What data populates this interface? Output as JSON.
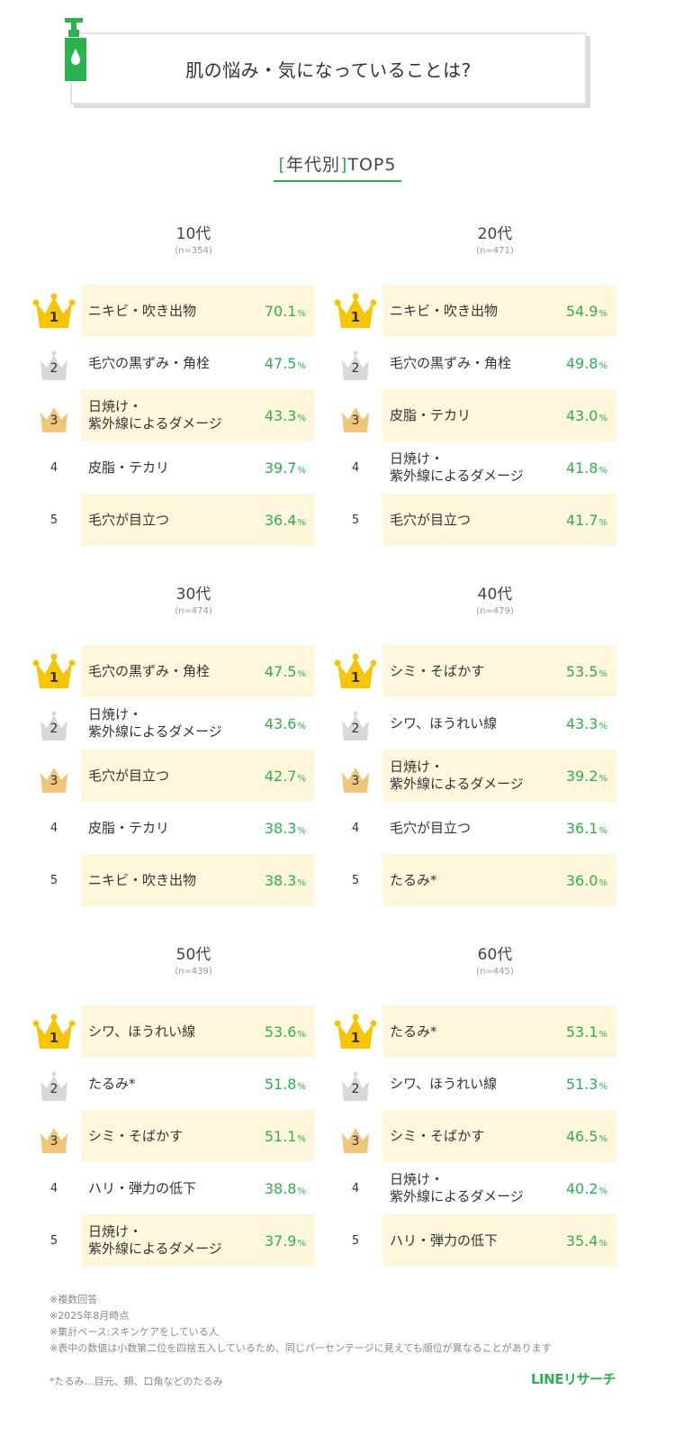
{
  "header": {
    "title": "肌の悩み・気になっていることは?",
    "icon": "pump-bottle-icon"
  },
  "subtitle": {
    "bracket_open": "[",
    "text": "年代別",
    "bracket_close": "]",
    "suffix": "TOP5"
  },
  "colors": {
    "accent": "#2bb24c",
    "highlight": "#fff7dc",
    "gold": "#f7c600",
    "silver": "#d8d8dc",
    "bronze": "#f0c57a"
  },
  "panels": [
    {
      "age": "10代",
      "n": "(n=354)",
      "rows": [
        {
          "rank": "1",
          "label": "ニキビ・吹き出物",
          "value": "70.1",
          "unit": "%"
        },
        {
          "rank": "2",
          "label": "毛穴の黒ずみ・角栓",
          "value": "47.5",
          "unit": "%"
        },
        {
          "rank": "3",
          "label": "日焼け・\n紫外線によるダメージ",
          "value": "43.3",
          "unit": "%"
        },
        {
          "rank": "4",
          "label": "皮脂・テカリ",
          "value": "39.7",
          "unit": "%"
        },
        {
          "rank": "5",
          "label": "毛穴が目立つ",
          "value": "36.4",
          "unit": "%"
        }
      ]
    },
    {
      "age": "20代",
      "n": "(n=471)",
      "rows": [
        {
          "rank": "1",
          "label": "ニキビ・吹き出物",
          "value": "54.9",
          "unit": "%"
        },
        {
          "rank": "2",
          "label": "毛穴の黒ずみ・角栓",
          "value": "49.8",
          "unit": "%"
        },
        {
          "rank": "3",
          "label": "皮脂・テカリ",
          "value": "43.0",
          "unit": "%"
        },
        {
          "rank": "4",
          "label": "日焼け・\n紫外線によるダメージ",
          "value": "41.8",
          "unit": "%"
        },
        {
          "rank": "5",
          "label": "毛穴が目立つ",
          "value": "41.7",
          "unit": "%"
        }
      ]
    },
    {
      "age": "30代",
      "n": "(n=474)",
      "rows": [
        {
          "rank": "1",
          "label": "毛穴の黒ずみ・角栓",
          "value": "47.5",
          "unit": "%"
        },
        {
          "rank": "2",
          "label": "日焼け・\n紫外線によるダメージ",
          "value": "43.6",
          "unit": "%"
        },
        {
          "rank": "3",
          "label": "毛穴が目立つ",
          "value": "42.7",
          "unit": "%"
        },
        {
          "rank": "4",
          "label": "皮脂・テカリ",
          "value": "38.3",
          "unit": "%"
        },
        {
          "rank": "5",
          "label": "ニキビ・吹き出物",
          "value": "38.3",
          "unit": "%"
        }
      ]
    },
    {
      "age": "40代",
      "n": "(n=479)",
      "rows": [
        {
          "rank": "1",
          "label": "シミ・そばかす",
          "value": "53.5",
          "unit": "%"
        },
        {
          "rank": "2",
          "label": "シワ、ほうれい線",
          "value": "43.3",
          "unit": "%"
        },
        {
          "rank": "3",
          "label": "日焼け・\n紫外線によるダメージ",
          "value": "39.2",
          "unit": "%"
        },
        {
          "rank": "4",
          "label": "毛穴が目立つ",
          "value": "36.1",
          "unit": "%"
        },
        {
          "rank": "5",
          "label": "たるみ*",
          "value": "36.0",
          "unit": "%"
        }
      ]
    },
    {
      "age": "50代",
      "n": "(n=439)",
      "rows": [
        {
          "rank": "1",
          "label": "シワ、ほうれい線",
          "value": "53.6",
          "unit": "%"
        },
        {
          "rank": "2",
          "label": "たるみ*",
          "value": "51.8",
          "unit": "%"
        },
        {
          "rank": "3",
          "label": "シミ・そばかす",
          "value": "51.1",
          "unit": "%"
        },
        {
          "rank": "4",
          "label": "ハリ・弾力の低下",
          "value": "38.8",
          "unit": "%"
        },
        {
          "rank": "5",
          "label": "日焼け・\n紫外線によるダメージ",
          "value": "37.9",
          "unit": "%"
        }
      ]
    },
    {
      "age": "60代",
      "n": "(n=445)",
      "rows": [
        {
          "rank": "1",
          "label": "たるみ*",
          "value": "53.1",
          "unit": "%"
        },
        {
          "rank": "2",
          "label": "シワ、ほうれい線",
          "value": "51.3",
          "unit": "%"
        },
        {
          "rank": "3",
          "label": "シミ・そばかす",
          "value": "46.5",
          "unit": "%"
        },
        {
          "rank": "4",
          "label": "日焼け・\n紫外線によるダメージ",
          "value": "40.2",
          "unit": "%"
        },
        {
          "rank": "5",
          "label": "ハリ・弾力の低下",
          "value": "35.4",
          "unit": "%"
        }
      ]
    }
  ],
  "notes": [
    "※複数回答",
    "※2025年8月時点",
    "※集計ベース:スキンケアをしている人",
    "※表中の数値は小数第二位を四捨五入しているため、同じパーセンテージに見えても順位が異なることがあります"
  ],
  "footnote": "*たるみ…目元、頬、口角などのたるみ",
  "logo": "LINEリサーチ",
  "chart_data": {
    "type": "table",
    "title": "肌の悩み・気になっていることは? [年代別]TOP5",
    "unit": "%",
    "groups": [
      {
        "name": "10代",
        "n": 354,
        "items": [
          [
            "ニキビ・吹き出物",
            70.1
          ],
          [
            "毛穴の黒ずみ・角栓",
            47.5
          ],
          [
            "日焼け・紫外線によるダメージ",
            43.3
          ],
          [
            "皮脂・テカリ",
            39.7
          ],
          [
            "毛穴が目立つ",
            36.4
          ]
        ]
      },
      {
        "name": "20代",
        "n": 471,
        "items": [
          [
            "ニキビ・吹き出物",
            54.9
          ],
          [
            "毛穴の黒ずみ・角栓",
            49.8
          ],
          [
            "皮脂・テカリ",
            43.0
          ],
          [
            "日焼け・紫外線によるダメージ",
            41.8
          ],
          [
            "毛穴が目立つ",
            41.7
          ]
        ]
      },
      {
        "name": "30代",
        "n": 474,
        "items": [
          [
            "毛穴の黒ずみ・角栓",
            47.5
          ],
          [
            "日焼け・紫外線によるダメージ",
            43.6
          ],
          [
            "毛穴が目立つ",
            42.7
          ],
          [
            "皮脂・テカリ",
            38.3
          ],
          [
            "ニキビ・吹き出物",
            38.3
          ]
        ]
      },
      {
        "name": "40代",
        "n": 479,
        "items": [
          [
            "シミ・そばかす",
            53.5
          ],
          [
            "シワ、ほうれい線",
            43.3
          ],
          [
            "日焼け・紫外線によるダメージ",
            39.2
          ],
          [
            "毛穴が目立つ",
            36.1
          ],
          [
            "たるみ*",
            36.0
          ]
        ]
      },
      {
        "name": "50代",
        "n": 439,
        "items": [
          [
            "シワ、ほうれい線",
            53.6
          ],
          [
            "たるみ*",
            51.8
          ],
          [
            "シミ・そばかす",
            51.1
          ],
          [
            "ハリ・弾力の低下",
            38.8
          ],
          [
            "日焼け・紫外線によるダメージ",
            37.9
          ]
        ]
      },
      {
        "name": "60代",
        "n": 445,
        "items": [
          [
            "たるみ*",
            53.1
          ],
          [
            "シワ、ほうれい線",
            51.3
          ],
          [
            "シミ・そばかす",
            46.5
          ],
          [
            "日焼け・紫外線によるダメージ",
            40.2
          ],
          [
            "ハリ・弾力の低下",
            35.4
          ]
        ]
      }
    ]
  }
}
